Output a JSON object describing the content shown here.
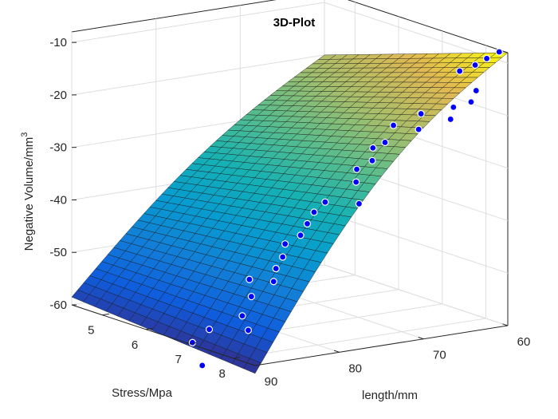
{
  "chart_data": {
    "type": "surface3d+scatter3d",
    "title": "3D-Plot",
    "xlabel": "Stress/Mpa",
    "ylabel": "length/mm",
    "zlabel_main": "Negative Volume/mm",
    "zlabel_sup": "3",
    "x_ticks": [
      "5",
      "6",
      "7",
      "8"
    ],
    "y_ticks": [
      "60",
      "70",
      "80",
      "90"
    ],
    "z_ticks": [
      "-10",
      "-20",
      "-30",
      "-40",
      "-50",
      "-60"
    ],
    "xlim": [
      4.3,
      8.5
    ],
    "ylim": [
      60,
      90
    ],
    "zlim": [
      -60,
      -8
    ],
    "grid": true,
    "colormap": "parula",
    "surface_corners": {
      "stress_4.3_length_90": -58.5,
      "stress_8.5_length_90": -61.5,
      "stress_4.3_length_60": -20.0,
      "stress_8.5_length_60": -8.0
    },
    "scatter_color": "#0000ff",
    "scatter_points": [
      {
        "x": 8.4,
        "y": 60.5,
        "z": -8.0
      },
      {
        "x": 8.25,
        "y": 61.2,
        "z": -9.5
      },
      {
        "x": 8.1,
        "y": 61.8,
        "z": -11.0
      },
      {
        "x": 7.9,
        "y": 62.6,
        "z": -12.5
      },
      {
        "x": 8.2,
        "y": 62.2,
        "z": -15.5
      },
      {
        "x": 8.2,
        "y": 62.8,
        "z": -17.5
      },
      {
        "x": 7.95,
        "y": 63.6,
        "z": -19.0
      },
      {
        "x": 8.0,
        "y": 64.2,
        "z": -21.0
      },
      {
        "x": 7.4,
        "y": 64.6,
        "z": -21.5
      },
      {
        "x": 7.5,
        "y": 65.4,
        "z": -24.0
      },
      {
        "x": 7.0,
        "y": 65.8,
        "z": -24.5
      },
      {
        "x": 7.0,
        "y": 66.8,
        "z": -27.5
      },
      {
        "x": 6.8,
        "y": 67.2,
        "z": -29.0
      },
      {
        "x": 6.9,
        "y": 67.8,
        "z": -31.0
      },
      {
        "x": 6.7,
        "y": 68.6,
        "z": -33.0
      },
      {
        "x": 6.8,
        "y": 69.2,
        "z": -35.0
      },
      {
        "x": 7.1,
        "y": 70.4,
        "z": -38.0
      },
      {
        "x": 6.4,
        "y": 70.8,
        "z": -39.5
      },
      {
        "x": 6.3,
        "y": 71.6,
        "z": -41.5
      },
      {
        "x": 6.3,
        "y": 72.4,
        "z": -43.5
      },
      {
        "x": 6.3,
        "y": 73.2,
        "z": -45.5
      },
      {
        "x": 6.1,
        "y": 74.0,
        "z": -47.5
      },
      {
        "x": 6.2,
        "y": 74.8,
        "z": -49.5
      },
      {
        "x": 6.2,
        "y": 75.6,
        "z": -51.5
      },
      {
        "x": 6.3,
        "y": 76.4,
        "z": -53.5
      },
      {
        "x": 5.9,
        "y": 77.2,
        "z": -54.0
      },
      {
        "x": 6.1,
        "y": 78.0,
        "z": -56.5
      },
      {
        "x": 6.2,
        "y": 79.6,
        "z": -59.5
      },
      {
        "x": 6.8,
        "y": 82.0,
        "z": -60.0
      },
      {
        "x": 6.1,
        "y": 83.0,
        "z": -61.5
      },
      {
        "x": 6.1,
        "y": 85.0,
        "z": -63.5
      },
      {
        "x": 7.0,
        "y": 88.5,
        "z": -64.5
      }
    ]
  }
}
